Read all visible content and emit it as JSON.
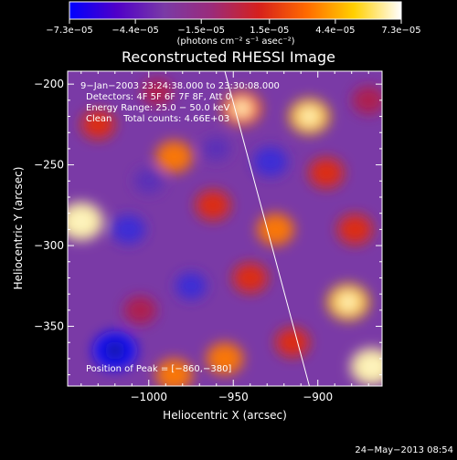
{
  "chart_data": {
    "type": "heatmap",
    "title": "Reconstructed RHESSI Image",
    "xlabel": "Heliocentric X (arcsec)",
    "ylabel": "Heliocentric Y (arcsec)",
    "xlim": [
      -1048,
      -862
    ],
    "ylim": [
      -387,
      -192
    ],
    "x_ticks": [
      -1000,
      -950,
      -900
    ],
    "x_tick_labels": [
      "−1000",
      "−950",
      "−900"
    ],
    "y_ticks": [
      -200,
      -250,
      -300,
      -350
    ],
    "y_tick_labels": [
      "−200",
      "−250",
      "−300",
      "−350"
    ],
    "colorbar": {
      "range": [
        -7.3e-05,
        7.3e-05
      ],
      "tick_values": [
        -7.3e-05,
        -4.4e-05,
        -1.5e-05,
        1.5e-05,
        4.4e-05,
        7.3e-05
      ],
      "tick_labels": [
        "−7.3e−05",
        "−4.4e−05",
        "−1.5e−05",
        "1.5e−05",
        "4.4e−05",
        "7.3e−05"
      ],
      "label": "(photons cm⁻² s⁻¹ asec⁻²)",
      "colors": [
        "#0000ff",
        "#5000c8",
        "#7a3aa6",
        "#9b2b7a",
        "#d6201c",
        "#ff6a00",
        "#ffd000",
        "#ffffff"
      ]
    },
    "annotations": [
      "9−Jan−2003 23:24:38.000 to 23:30:08.000",
      "Detectors: 4F 5F 6F 7F 8F, Att 0",
      "Energy Range: 25.0 − 50.0 keV",
      "Clean    Total counts: 4.66E+03"
    ],
    "peak_label": "Position of Peak = [−860,−380]",
    "limb_line": [
      [
        -955,
        -192
      ],
      [
        -905,
        -387
      ]
    ],
    "peak_position": [
      -860,
      -380
    ],
    "blobs": [
      {
        "x": -1040,
        "y": -285,
        "v": 1.0
      },
      {
        "x": -1030,
        "y": -225,
        "v": 0.55
      },
      {
        "x": -1012,
        "y": -290,
        "v": -0.55
      },
      {
        "x": -1020,
        "y": -365,
        "v": -1.0
      },
      {
        "x": -1005,
        "y": -340,
        "v": 0.5
      },
      {
        "x": -995,
        "y": -205,
        "v": 0.45
      },
      {
        "x": -985,
        "y": -245,
        "v": 0.7
      },
      {
        "x": -985,
        "y": -380,
        "v": 0.7
      },
      {
        "x": -975,
        "y": -325,
        "v": -0.45
      },
      {
        "x": -962,
        "y": -275,
        "v": 0.6
      },
      {
        "x": -955,
        "y": -370,
        "v": 0.7
      },
      {
        "x": -945,
        "y": -215,
        "v": 0.8
      },
      {
        "x": -940,
        "y": -320,
        "v": 0.6
      },
      {
        "x": -928,
        "y": -248,
        "v": -0.6
      },
      {
        "x": -925,
        "y": -290,
        "v": 0.7
      },
      {
        "x": -915,
        "y": -360,
        "v": 0.55
      },
      {
        "x": -905,
        "y": -220,
        "v": 0.85
      },
      {
        "x": -895,
        "y": -255,
        "v": 0.6
      },
      {
        "x": -882,
        "y": -335,
        "v": 0.9
      },
      {
        "x": -878,
        "y": -290,
        "v": 0.6
      },
      {
        "x": -868,
        "y": -375,
        "v": 0.95
      },
      {
        "x": -870,
        "y": -210,
        "v": 0.5
      },
      {
        "x": -1000,
        "y": -260,
        "v": -0.35
      },
      {
        "x": -960,
        "y": -240,
        "v": -0.3
      }
    ]
  },
  "footer": {
    "timestamp": "24−May−2013 08:54"
  }
}
